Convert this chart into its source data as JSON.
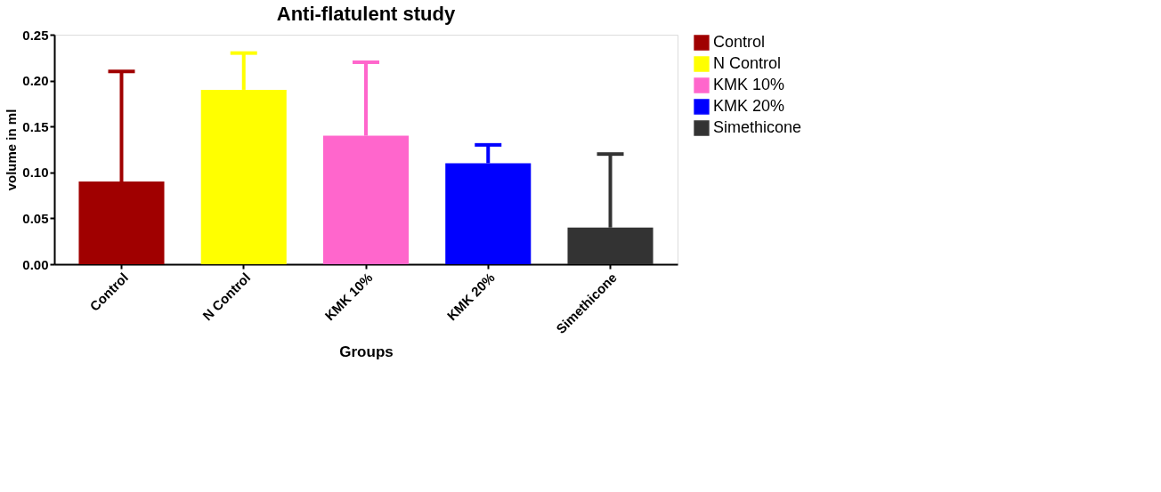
{
  "chart_data": {
    "type": "bar",
    "title": "Anti-flatulent study",
    "xlabel": "Groups",
    "ylabel": "volume in ml",
    "legend": "top right",
    "grid": false,
    "categories": [
      "Control",
      "N Control",
      "KMK 10%",
      "KMK 20%",
      "Simethicone"
    ],
    "series": [
      {
        "name": "Control",
        "color": "#a00000",
        "values": [
          0.09,
          null,
          null,
          null,
          null
        ],
        "errors": [
          [
            0.09,
            0.21
          ],
          null,
          null,
          null,
          null
        ]
      },
      {
        "name": "N Control",
        "color": "#ffff00",
        "values": [
          null,
          0.19,
          null,
          null,
          null
        ],
        "errors": [
          null,
          [
            0.19,
            0.23
          ],
          null,
          null,
          null
        ]
      },
      {
        "name": "KMK 10%",
        "color": "#ff66cc",
        "values": [
          null,
          null,
          0.14,
          null,
          null
        ],
        "errors": [
          null,
          null,
          [
            0.14,
            0.22
          ],
          null,
          null
        ]
      },
      {
        "name": "KMK 20%",
        "color": "#0000ff",
        "values": [
          null,
          null,
          null,
          0.11,
          null
        ],
        "errors": [
          null,
          null,
          null,
          [
            0.11,
            0.13
          ],
          null
        ]
      },
      {
        "name": "Simethicone",
        "color": "#333333",
        "values": [
          null,
          null,
          null,
          null,
          0.04
        ],
        "errors": [
          null,
          null,
          null,
          null,
          [
            0.04,
            0.12
          ]
        ]
      }
    ],
    "ylim": [
      0,
      0.25
    ],
    "yticks": [
      {
        "value": 0,
        "label": "0.00"
      },
      {
        "value": 0.05,
        "label": "0.05"
      },
      {
        "value": 0.1,
        "label": "0.10"
      },
      {
        "value": 0.15,
        "label": "0.15"
      },
      {
        "value": 0.2,
        "label": "0.20"
      },
      {
        "value": 0.25,
        "label": "0.25"
      }
    ]
  }
}
